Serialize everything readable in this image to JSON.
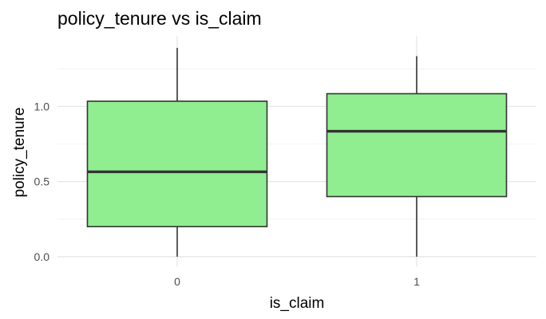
{
  "chart_data": {
    "type": "box",
    "title": "policy_tenure vs is_claim",
    "xlabel": "is_claim",
    "ylabel": "policy_tenure",
    "categories": [
      "0",
      "1"
    ],
    "y_ticks": [
      0.0,
      0.5,
      1.0
    ],
    "y_tick_labels": [
      "0.0",
      "0.5",
      "1.0"
    ],
    "ylim": [
      -0.07,
      1.47
    ],
    "grid": true,
    "fill_color": "#90EE90",
    "line_color": "#333333",
    "boxes": [
      {
        "category": "0",
        "min": 0.0,
        "q1": 0.2,
        "median": 0.565,
        "q3": 1.035,
        "max": 1.39
      },
      {
        "category": "1",
        "min": 0.0,
        "q1": 0.4,
        "median": 0.835,
        "q3": 1.085,
        "max": 1.335
      }
    ]
  }
}
